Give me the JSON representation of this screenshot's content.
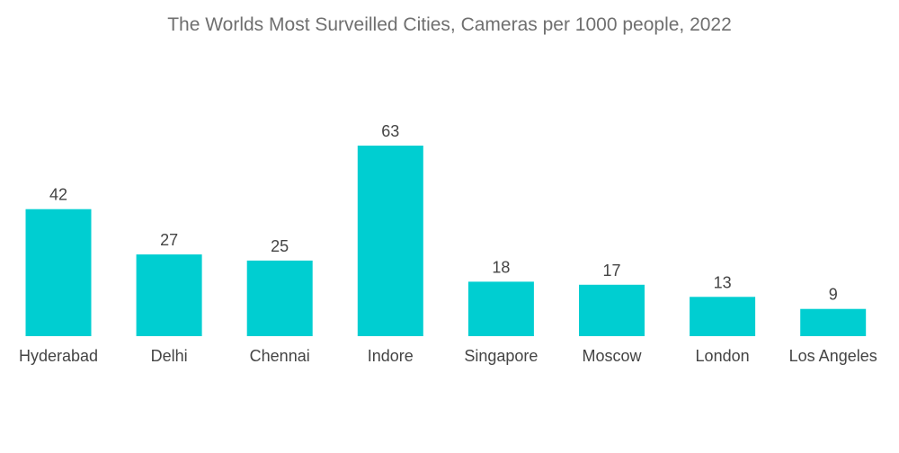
{
  "chart_data": {
    "type": "bar",
    "title": "The Worlds Most Surveilled Cities, Cameras per 1000 people, 2022",
    "categories": [
      "Hyderabad",
      "Delhi",
      "Chennai",
      "Indore",
      "Singapore",
      "Moscow",
      "London",
      "Los Angeles"
    ],
    "values": [
      42,
      27,
      25,
      63,
      18,
      17,
      13,
      9
    ],
    "xlabel": "",
    "ylabel": "",
    "ylim": [
      0,
      63
    ],
    "grid": false,
    "legend": "none",
    "data_labels": true,
    "bar_color": "#00CED1"
  }
}
